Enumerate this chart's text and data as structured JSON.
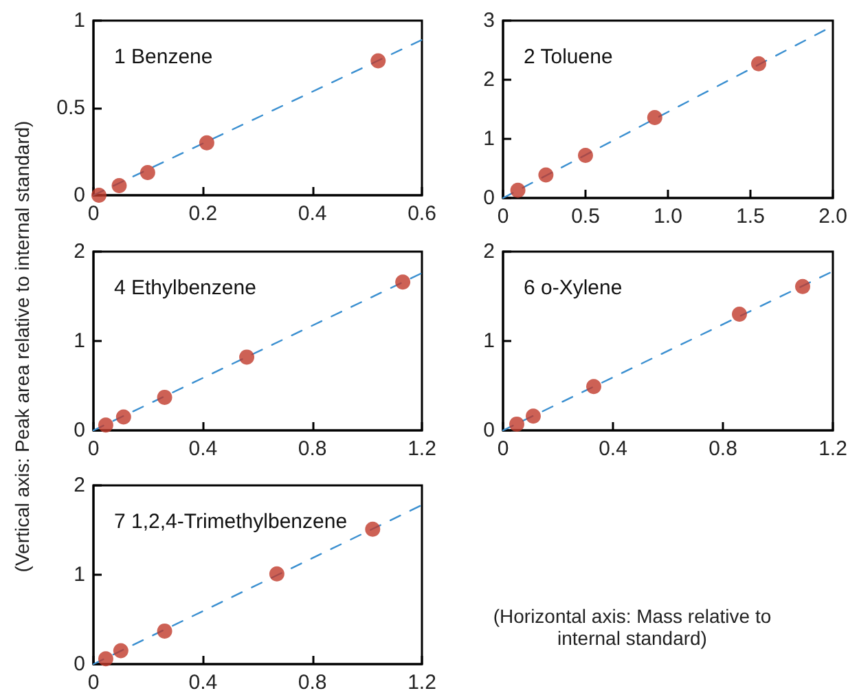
{
  "chart_data": [
    {
      "type": "scatter",
      "title": "1 Benzene",
      "xlim": [
        0,
        0.6
      ],
      "xticks": [
        0,
        0.2,
        0.4,
        0.6
      ],
      "ylim": [
        0,
        1
      ],
      "yticks": [
        0,
        0.5,
        1
      ],
      "series": [
        {
          "marker": "circle",
          "color": "#c0392b",
          "x": [
            0.01,
            0.047,
            0.099,
            0.207,
            0.52
          ],
          "values": [
            0.0,
            0.055,
            0.13,
            0.3,
            0.77
          ]
        },
        {
          "type": "line",
          "marker": "none",
          "color": "#3a8fd0",
          "line_style": "dashed",
          "x": [
            0,
            0.6
          ],
          "values": [
            0,
            0.89
          ]
        }
      ]
    },
    {
      "type": "scatter",
      "title": "2 Toluene",
      "xlim": [
        0,
        2
      ],
      "xticks": [
        0,
        0.5,
        {
          "value": 1,
          "label": "1.0"
        },
        1.5,
        {
          "value": 2,
          "label": "2.0"
        }
      ],
      "ylim": [
        0,
        3
      ],
      "yticks": [
        0,
        1,
        2,
        3
      ],
      "series": [
        {
          "marker": "circle",
          "color": "#c0392b",
          "x": [
            0.09,
            0.26,
            0.5,
            0.92,
            1.55
          ],
          "values": [
            0.13,
            0.39,
            0.72,
            1.36,
            2.27
          ]
        },
        {
          "type": "line",
          "marker": "none",
          "color": "#3a8fd0",
          "line_style": "dashed",
          "x": [
            0,
            2
          ],
          "values": [
            0,
            2.91
          ]
        }
      ]
    },
    {
      "type": "scatter",
      "title": "4 Ethylbenzene",
      "ylabel": "(Vertical axis: Peak area relative to internal standard)",
      "xlim": [
        0,
        1.2
      ],
      "xticks": [
        0,
        0.4,
        0.8,
        1.2
      ],
      "ylim": [
        0,
        2
      ],
      "yticks": [
        0,
        1,
        2
      ],
      "series": [
        {
          "marker": "circle",
          "color": "#c0392b",
          "x": [
            0.045,
            0.11,
            0.26,
            0.56,
            1.13
          ],
          "values": [
            0.06,
            0.15,
            0.37,
            0.82,
            1.66
          ]
        },
        {
          "type": "line",
          "marker": "none",
          "color": "#3a8fd0",
          "line_style": "dashed",
          "x": [
            0,
            1.2
          ],
          "values": [
            0,
            1.76
          ]
        }
      ]
    },
    {
      "type": "scatter",
      "title": "6 o-Xylene",
      "xlim": [
        0,
        1.2
      ],
      "xticks": [
        0,
        0.4,
        0.8,
        1.2
      ],
      "ylim": [
        0,
        2
      ],
      "yticks": [
        0,
        1,
        2
      ],
      "series": [
        {
          "marker": "circle",
          "color": "#c0392b",
          "x": [
            0.05,
            0.11,
            0.33,
            0.86,
            1.09
          ],
          "values": [
            0.07,
            0.16,
            0.49,
            1.3,
            1.61
          ]
        },
        {
          "type": "line",
          "marker": "none",
          "color": "#3a8fd0",
          "line_style": "dashed",
          "x": [
            0,
            1.2
          ],
          "values": [
            0,
            1.78
          ]
        }
      ]
    },
    {
      "type": "scatter",
      "title": "7 1,2,4-Trimethylbenzene",
      "annotations": [
        "(Horizontal axis: Mass relative to internal standard)"
      ],
      "xlim": [
        0,
        1.2
      ],
      "xticks": [
        0,
        0.4,
        0.8,
        1.2
      ],
      "ylim": [
        0,
        2
      ],
      "yticks": [
        0,
        1,
        2
      ],
      "series": [
        {
          "marker": "circle",
          "color": "#c0392b",
          "x": [
            0.045,
            0.1,
            0.26,
            0.67,
            1.02
          ],
          "values": [
            0.06,
            0.15,
            0.37,
            1.01,
            1.51
          ]
        },
        {
          "type": "line",
          "marker": "none",
          "color": "#3a8fd0",
          "line_style": "dashed",
          "x": [
            0,
            1.2
          ],
          "values": [
            0,
            1.78
          ]
        }
      ]
    }
  ]
}
